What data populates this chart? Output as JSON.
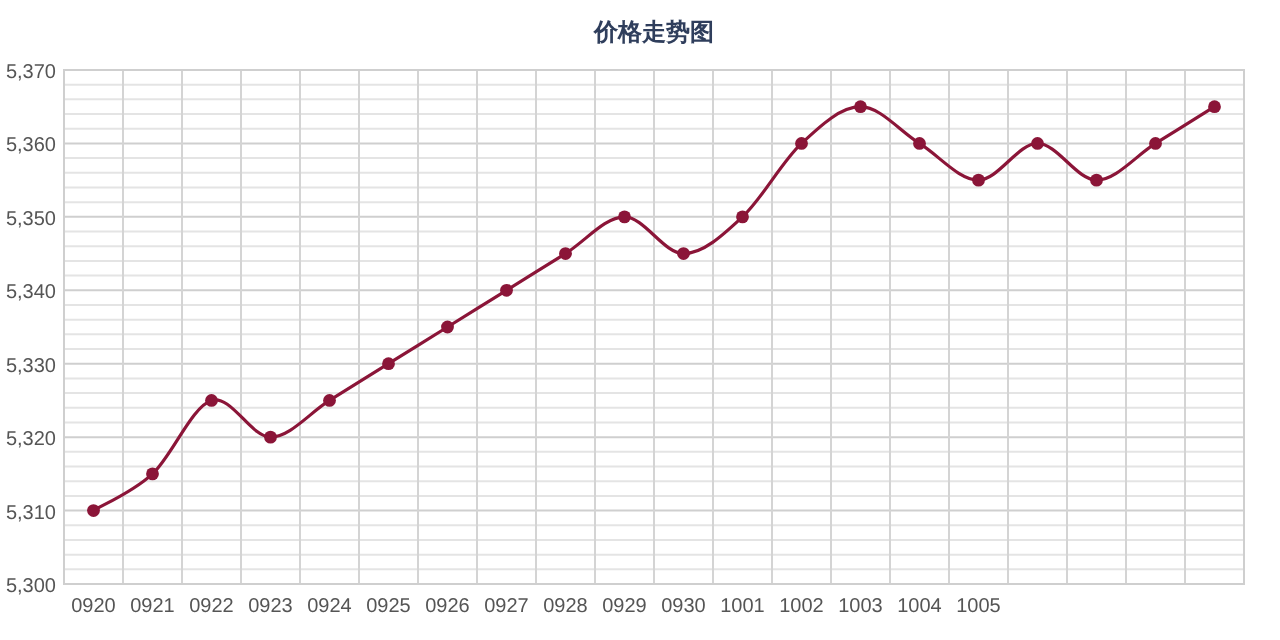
{
  "chart_data": {
    "type": "line",
    "title": "价格走势图",
    "categories": [
      "0920",
      "0921",
      "0922",
      "0923",
      "0924",
      "0925",
      "0926",
      "0927",
      "0928",
      "0929",
      "0930",
      "1001",
      "1002",
      "1003",
      "1004",
      "1005",
      null,
      null,
      null,
      null
    ],
    "series": [
      {
        "color": "#8b1538",
        "values": [
          5310,
          5315,
          5325,
          5320,
          5325,
          5330,
          5335,
          5340,
          5345,
          5350,
          5345,
          5350,
          5360,
          5365,
          5360,
          5355,
          5360,
          5355,
          5360,
          5365
        ]
      }
    ],
    "ylim": [
      5300,
      5370
    ],
    "yticks": [
      {
        "value": 5300,
        "label": "5,300"
      },
      {
        "value": 5310,
        "label": "5,310"
      },
      {
        "value": 5320,
        "label": "5,320"
      },
      {
        "value": 5330,
        "label": "5,330"
      },
      {
        "value": 5340,
        "label": "5,340"
      },
      {
        "value": 5350,
        "label": "5,350"
      },
      {
        "value": 5360,
        "label": "5,360"
      },
      {
        "value": 5370,
        "label": "5,370"
      }
    ],
    "grid": true,
    "marker": "circle",
    "line_style": "solid"
  }
}
